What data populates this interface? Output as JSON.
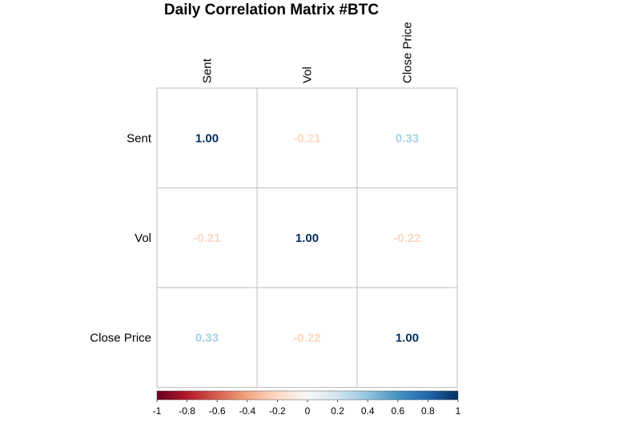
{
  "chart_data": {
    "type": "heatmap",
    "title": "Daily Correlation Matrix #BTC",
    "rows": [
      "Sent",
      "Vol",
      "Close Price"
    ],
    "cols": [
      "Sent",
      "Vol",
      "Close Price"
    ],
    "values": [
      [
        1.0,
        -0.21,
        0.33
      ],
      [
        -0.21,
        1.0,
        -0.22
      ],
      [
        0.33,
        -0.22,
        1.0
      ]
    ],
    "value_labels": [
      [
        "1.00",
        "-0.21",
        "0.33"
      ],
      [
        "-0.21",
        "1.00",
        "-0.22"
      ],
      [
        "0.33",
        "-0.22",
        "1.00"
      ]
    ],
    "colorbar": {
      "range": [
        -1,
        1
      ],
      "ticks": [
        "-1",
        "-0.8",
        "-0.6",
        "-0.4",
        "-0.2",
        "0",
        "0.2",
        "0.4",
        "0.6",
        "0.8",
        "1"
      ]
    },
    "colors": {
      "neg_strong": "#67001f",
      "neg_mid": "#d6604d",
      "neg_light": "#fddbc7",
      "neutral": "#f7f7f7",
      "pos_light": "#d1e5f0",
      "pos_mid": "#4393c3",
      "pos_strong": "#053061",
      "grid": "#bfbfbf"
    }
  }
}
